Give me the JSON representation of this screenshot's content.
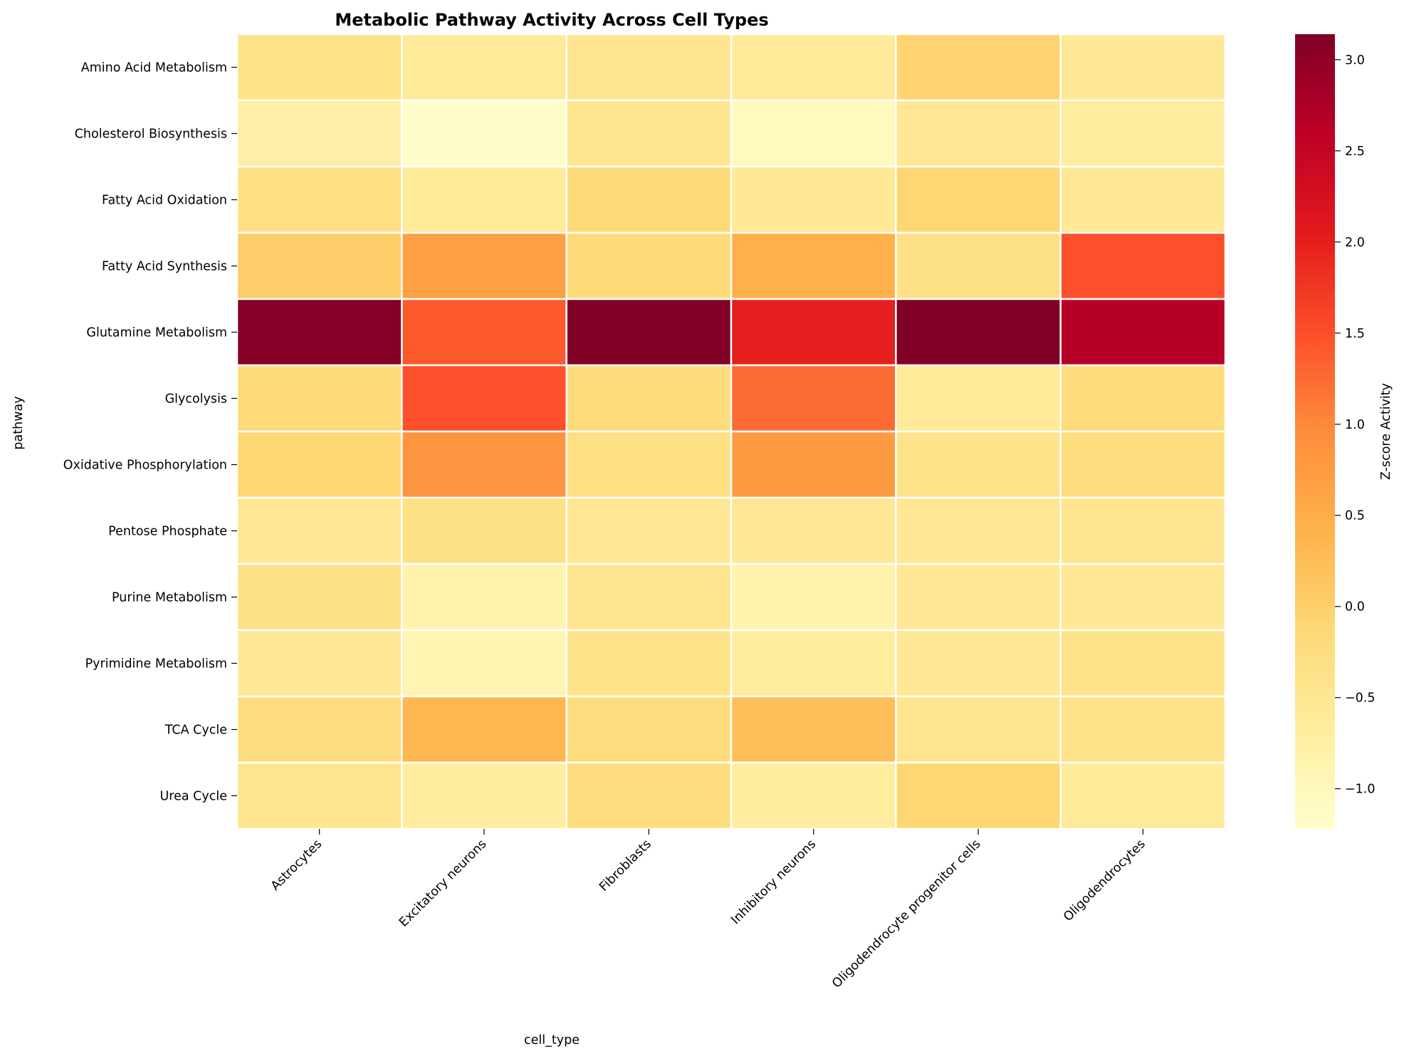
{
  "chart_data": {
    "type": "heatmap",
    "title": "Metabolic Pathway Activity Across Cell Types",
    "xlabel": "cell_type",
    "ylabel": "pathway",
    "x_categories": [
      "Astrocytes",
      "Excitatory neurons",
      "Fibroblasts",
      "Inhibitory neurons",
      "Oligodendrocyte progenitor cells",
      "Oligodendrocytes"
    ],
    "y_categories": [
      "Amino Acid Metabolism",
      "Cholesterol Biosynthesis",
      "Fatty Acid Oxidation",
      "Fatty Acid Synthesis",
      "Glutamine Metabolism",
      "Glycolysis",
      "Oxidative Phosphorylation",
      "Pentose Phosphate",
      "Purine Metabolism",
      "Pyrimidine Metabolism",
      "TCA Cycle",
      "Urea Cycle"
    ],
    "values": [
      [
        -0.4,
        -0.6,
        -0.45,
        -0.6,
        -0.05,
        -0.55
      ],
      [
        -0.75,
        -1.2,
        -0.45,
        -1.05,
        -0.5,
        -0.65
      ],
      [
        -0.3,
        -0.6,
        -0.15,
        -0.55,
        -0.1,
        -0.55
      ],
      [
        0.05,
        0.7,
        -0.15,
        0.45,
        -0.35,
        1.5
      ],
      [
        3.1,
        1.4,
        3.15,
        2.0,
        3.15,
        2.65
      ],
      [
        -0.15,
        1.5,
        -0.2,
        1.25,
        -0.6,
        -0.2
      ],
      [
        -0.1,
        0.85,
        -0.3,
        0.75,
        -0.4,
        -0.25
      ],
      [
        -0.5,
        -0.35,
        -0.5,
        -0.5,
        -0.5,
        -0.45
      ],
      [
        -0.35,
        -0.85,
        -0.45,
        -0.85,
        -0.5,
        -0.55
      ],
      [
        -0.55,
        -0.9,
        -0.4,
        -0.65,
        -0.5,
        -0.4
      ],
      [
        -0.25,
        0.35,
        -0.25,
        0.25,
        -0.45,
        -0.4
      ],
      [
        -0.45,
        -0.65,
        -0.25,
        -0.65,
        -0.1,
        -0.6
      ]
    ],
    "colorbar": {
      "label": "Z-score Activity",
      "min": -1.22,
      "max": 3.14,
      "ticks": [
        -1.0,
        -0.5,
        0.0,
        0.5,
        1.0,
        1.5,
        2.0,
        2.5,
        3.0
      ],
      "tick_labels": [
        "−1.0",
        "−0.5",
        "0.0",
        "0.5",
        "1.0",
        "1.5",
        "2.0",
        "2.5",
        "3.0"
      ]
    },
    "colormap": "YlOrRd",
    "colormap_stops": [
      "#ffffcc",
      "#ffeda0",
      "#fed976",
      "#feb24c",
      "#fd8d3c",
      "#fc4e2a",
      "#e31a1c",
      "#bd0026",
      "#800026"
    ],
    "gridlines": "white cell borders",
    "legend": "colorbar right"
  }
}
